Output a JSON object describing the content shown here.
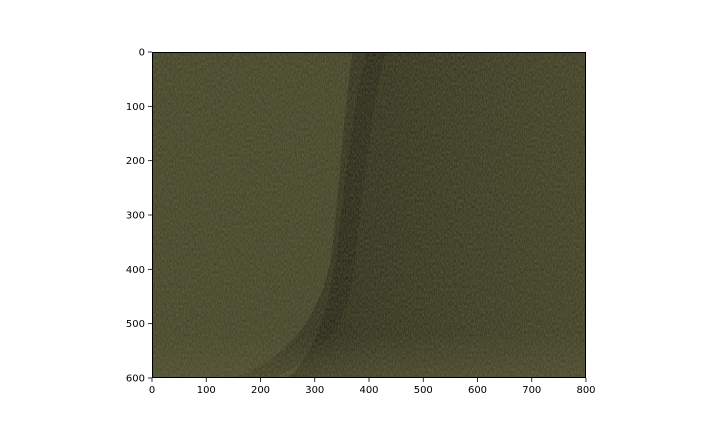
{
  "chart_data": {
    "type": "image",
    "title": "",
    "xlabel": "",
    "ylabel": "",
    "xlim": [
      0,
      800
    ],
    "ylim": [
      600,
      0
    ],
    "y_axis_inverted": true,
    "xticks": [
      0,
      100,
      200,
      300,
      400,
      500,
      600,
      700,
      800
    ],
    "yticks": [
      0,
      100,
      200,
      300,
      400,
      500,
      600
    ],
    "grid": false,
    "image_content": "dark olive-green textured grass slope with a shadowed diagonal fold",
    "colors": {
      "base": "#3b3b22",
      "light": "#4a4a2c",
      "shadow": "#17170e",
      "mid_shadow": "#262616"
    }
  }
}
